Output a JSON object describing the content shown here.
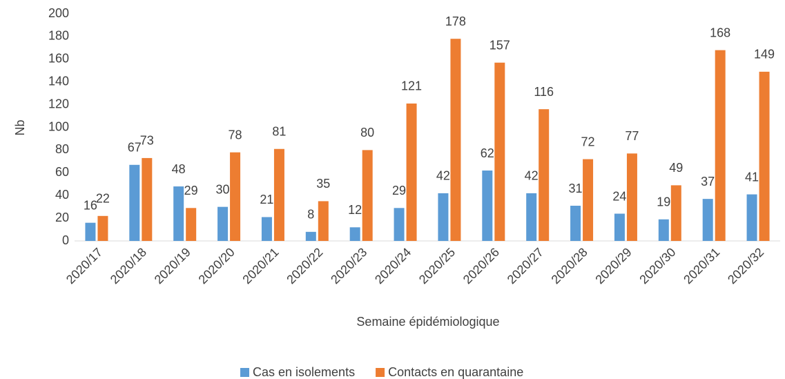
{
  "chart_data": {
    "type": "bar",
    "x_label": "Semaine épidémiologique",
    "y_label": "Nb",
    "categories": [
      "2020/17",
      "2020/18",
      "2020/19",
      "2020/20",
      "2020/21",
      "2020/22",
      "2020/23",
      "2020/24",
      "2020/25",
      "2020/26",
      "2020/27",
      "2020/28",
      "2020/29",
      "2020/30",
      "2020/31",
      "2020/32"
    ],
    "series": [
      {
        "name": "Cas en isolements",
        "color": "#5b9bd5",
        "values": [
          16,
          67,
          48,
          30,
          21,
          8,
          12,
          29,
          42,
          62,
          42,
          31,
          24,
          19,
          37,
          41
        ]
      },
      {
        "name": "Contacts en quarantaine",
        "color": "#ed7d31",
        "values": [
          22,
          73,
          29,
          78,
          81,
          35,
          80,
          121,
          178,
          157,
          116,
          72,
          77,
          49,
          168,
          149
        ]
      }
    ],
    "ylim": [
      0,
      200
    ],
    "yticks": [
      0,
      20,
      40,
      60,
      80,
      100,
      120,
      140,
      160,
      180,
      200
    ],
    "grid": false,
    "legend": "bottom"
  }
}
